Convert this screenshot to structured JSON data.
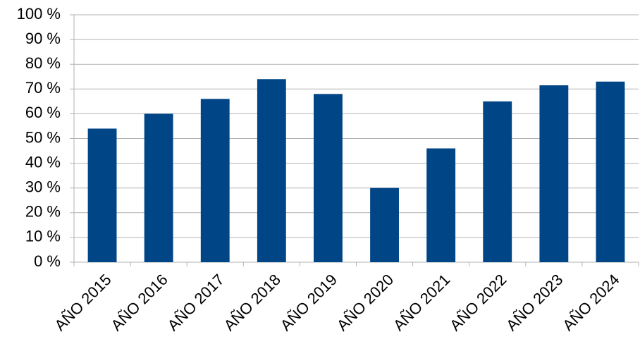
{
  "chart_data": {
    "type": "bar",
    "categories": [
      "AÑO 2015",
      "AÑO 2016",
      "AÑO 2017",
      "AÑO 2018",
      "AÑO 2019",
      "AÑO 2020",
      "AÑO 2021",
      "AÑO 2022",
      "AÑO 2023",
      "AÑO 2024"
    ],
    "values": [
      54,
      60,
      66,
      74,
      68,
      30,
      46,
      65,
      71.5,
      73
    ],
    "color": "#004586",
    "ylim": [
      0,
      100
    ],
    "yticks": [
      {
        "value": 0,
        "label": "0 %"
      },
      {
        "value": 10,
        "label": "10 %"
      },
      {
        "value": 20,
        "label": "20 %"
      },
      {
        "value": 30,
        "label": "30 %"
      },
      {
        "value": 40,
        "label": "40 %"
      },
      {
        "value": 50,
        "label": "50 %"
      },
      {
        "value": 60,
        "label": "60 %"
      },
      {
        "value": 70,
        "label": "70 %"
      },
      {
        "value": 80,
        "label": "80 %"
      },
      {
        "value": 90,
        "label": "90 %"
      },
      {
        "value": 100,
        "label": "100 %"
      }
    ],
    "grid": true
  }
}
